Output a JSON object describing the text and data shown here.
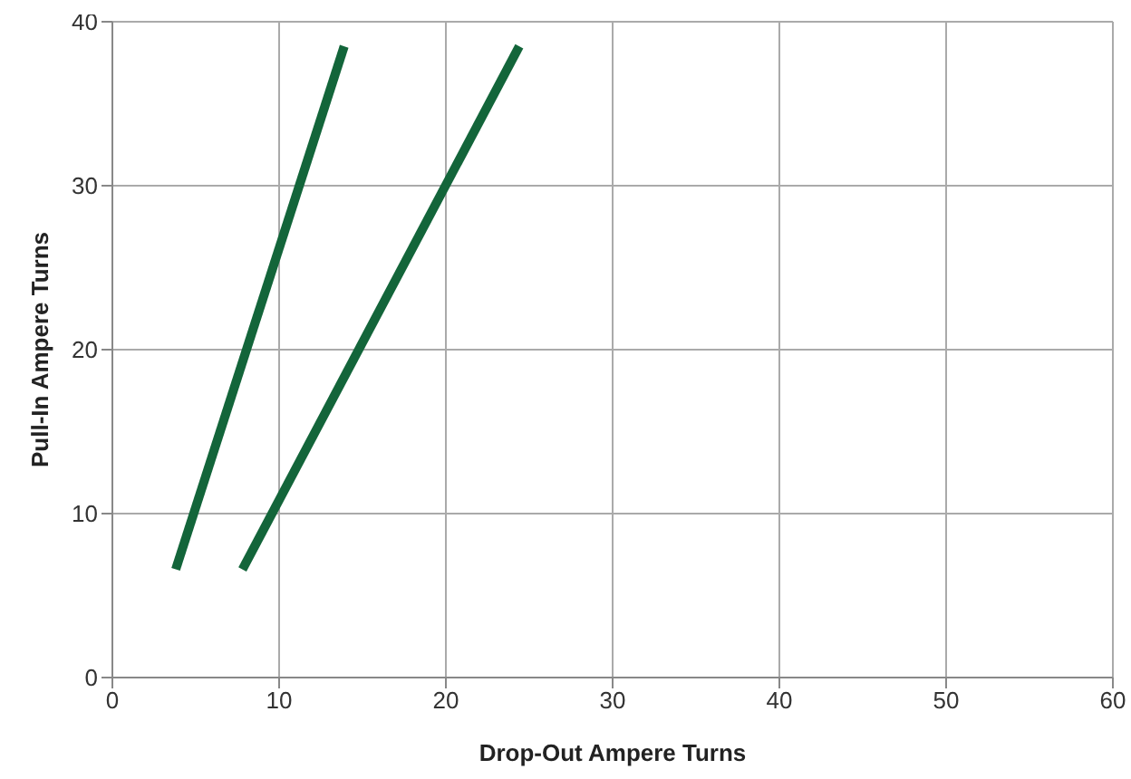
{
  "chart_data": {
    "type": "line",
    "xlabel": "Drop-Out Ampere Turns",
    "ylabel": "Pull-In Ampere Turns",
    "series": [
      {
        "color": "#13653a",
        "x": [
          3.8,
          13.9
        ],
        "values": [
          6.6,
          38.5
        ]
      },
      {
        "color": "#13653a",
        "x": [
          7.8,
          24.4
        ],
        "values": [
          6.6,
          38.5
        ]
      }
    ],
    "xlim": [
      0,
      60
    ],
    "xticks": [
      0,
      10,
      20,
      30,
      40,
      50,
      60
    ],
    "ylim": [
      0,
      40
    ],
    "yticks": [
      0,
      10,
      20,
      30,
      40
    ],
    "grid": true,
    "marker": "none",
    "line_style": "solid"
  }
}
